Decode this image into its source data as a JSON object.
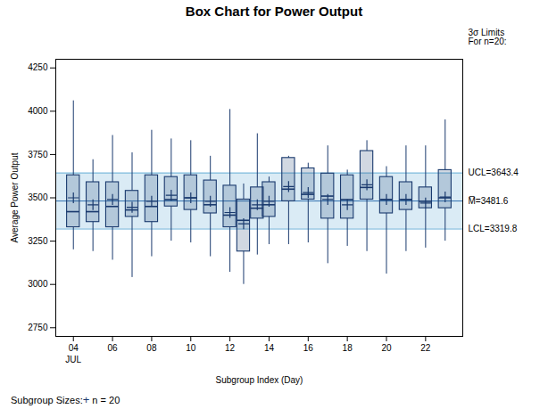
{
  "chart_data": {
    "type": "box",
    "title": "Box Chart for Power Output",
    "xlabel": "Subgroup Index (Day)",
    "ylabel": "Average Power Output",
    "x": [
      4,
      5,
      6,
      7,
      8,
      9,
      10,
      11,
      12,
      12.7,
      13.4,
      14,
      15,
      16,
      17,
      18,
      19,
      20,
      21,
      22,
      23
    ],
    "whislo": [
      3200,
      3190,
      3140,
      3040,
      3160,
      3250,
      3240,
      3160,
      3070,
      3000,
      3170,
      3230,
      3230,
      3240,
      3120,
      3220,
      3190,
      3060,
      3190,
      3210,
      3250
    ],
    "q1": [
      3330,
      3360,
      3330,
      3390,
      3360,
      3450,
      3430,
      3410,
      3330,
      3190,
      3380,
      3390,
      3480,
      3490,
      3380,
      3380,
      3490,
      3410,
      3430,
      3440,
      3440
    ],
    "median": [
      3420,
      3420,
      3450,
      3430,
      3450,
      3490,
      3500,
      3460,
      3400,
      3370,
      3440,
      3460,
      3550,
      3520,
      3510,
      3490,
      3560,
      3490,
      3490,
      3480,
      3500
    ],
    "q3": [
      3630,
      3590,
      3590,
      3540,
      3630,
      3620,
      3630,
      3600,
      3570,
      3490,
      3560,
      3590,
      3730,
      3670,
      3640,
      3630,
      3770,
      3620,
      3590,
      3560,
      3660
    ],
    "whishi": [
      4060,
      3720,
      3860,
      3760,
      3890,
      3840,
      3830,
      3740,
      4010,
      3580,
      3870,
      3620,
      3740,
      3700,
      3800,
      3660,
      3830,
      3680,
      3800,
      3800,
      3950
    ],
    "mean": [
      3500,
      3460,
      3490,
      3445,
      3480,
      3515,
      3500,
      3480,
      3415,
      3350,
      3460,
      3480,
      3565,
      3530,
      3490,
      3460,
      3575,
      3490,
      3490,
      3470,
      3505
    ],
    "color": "#1a3a6e",
    "marker": "plus",
    "control_limits": [
      {
        "value": 3643.4,
        "label": "UCL=3643.4",
        "color": "#6ab0d8"
      },
      {
        "value": 3481.6,
        "label": "M̅=3481.6",
        "color": "#3070b0"
      },
      {
        "value": 3319.8,
        "label": "LCL=3319.8",
        "color": "#6ab0d8"
      }
    ],
    "annotations": [
      {
        "text": "3σ Limits\nFor n=20:"
      },
      {
        "text": "JUL",
        "x": 4
      }
    ],
    "footer": [
      {
        "text": "Subgroup Sizes:"
      },
      {
        "text": "+",
        "color": "#1a3a6e"
      },
      {
        "text": " n = 20"
      }
    ],
    "xlim": [
      3.1,
      23.9
    ],
    "xticks": [
      {
        "value": 4,
        "label": "04"
      },
      {
        "value": 6,
        "label": "06"
      },
      {
        "value": 8,
        "label": "08"
      },
      {
        "value": 10,
        "label": "10"
      },
      {
        "value": 12,
        "label": "12"
      },
      {
        "value": 14,
        "label": "14"
      },
      {
        "value": 16,
        "label": "16"
      },
      {
        "value": 18,
        "label": "18"
      },
      {
        "value": 20,
        "label": "20"
      },
      {
        "value": 22,
        "label": "22"
      }
    ],
    "ylim": [
      2700,
      4300
    ],
    "yticks": [
      2750,
      3000,
      3250,
      3500,
      3750,
      4000,
      4250
    ],
    "grid": false
  }
}
